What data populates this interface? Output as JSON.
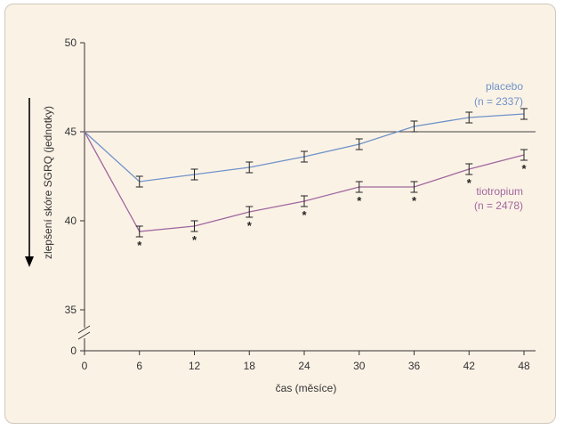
{
  "chart_data": {
    "type": "line",
    "title": "",
    "xlabel": "čas (měsíce)",
    "ylabel": "zlepšení skóre SGRQ (jednotky)",
    "x_ticks": [
      0,
      6,
      12,
      18,
      24,
      30,
      36,
      42,
      48
    ],
    "y_ticks": [
      0,
      35,
      40,
      45,
      50
    ],
    "ylim": [
      35,
      50
    ],
    "y_axis_break": true,
    "reference_line": 45,
    "grid": false,
    "x": [
      0,
      6,
      12,
      18,
      24,
      30,
      36,
      42,
      48
    ],
    "series": [
      {
        "name": "placebo",
        "n_label": "(n = 2337)",
        "color": "#6f93c8",
        "values": [
          45.0,
          42.2,
          42.6,
          43.0,
          43.6,
          44.3,
          45.3,
          45.8,
          46.0
        ],
        "errors": [
          0,
          0.3,
          0.3,
          0.3,
          0.3,
          0.3,
          0.3,
          0.3,
          0.3
        ]
      },
      {
        "name": "tiotropium",
        "n_label": "(n = 2478)",
        "color": "#a0689e",
        "values": [
          45.0,
          39.4,
          39.7,
          40.5,
          41.1,
          41.9,
          41.9,
          42.9,
          43.7
        ],
        "errors": [
          0,
          0.3,
          0.3,
          0.3,
          0.3,
          0.3,
          0.3,
          0.3,
          0.3
        ],
        "significant_marker": "*",
        "significant_at": [
          6,
          12,
          18,
          24,
          30,
          36,
          42,
          48
        ]
      }
    ]
  }
}
